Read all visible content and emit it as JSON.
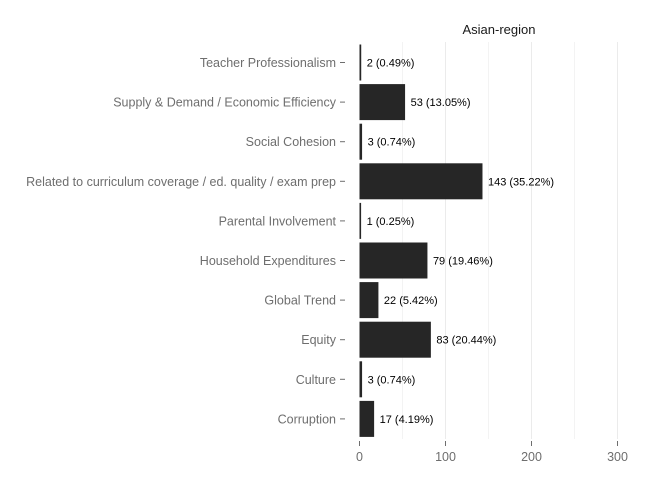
{
  "chart_data": {
    "type": "bar",
    "orientation": "horizontal",
    "facet_title": "Asian-region",
    "categories": [
      "Teacher Professionalism",
      "Supply & Demand / Economic Efficiency",
      "Social Cohesion",
      "Related to curriculum coverage / ed. quality / exam prep",
      "Parental Involvement",
      "Household Expenditures",
      "Global Trend",
      "Equity",
      "Culture",
      "Corruption"
    ],
    "values": [
      2,
      53,
      3,
      143,
      1,
      79,
      22,
      83,
      3,
      17
    ],
    "data_labels": [
      "2 (0.49%)",
      "53 (13.05%)",
      "3 (0.74%)",
      "143 (35.22%)",
      "1 (0.25%)",
      "79 (19.46%)",
      "22 (5.42%)",
      "83 (20.44%)",
      "3 (0.74%)",
      "17 (4.19%)"
    ],
    "xlim": [
      0,
      300
    ],
    "xticks": [
      0,
      100,
      200,
      300
    ],
    "grid": true,
    "colors": {
      "bar": "#262626",
      "grid": "#ebebeb",
      "axis_text": "#6e6e6e",
      "label_text": "#000000"
    }
  }
}
